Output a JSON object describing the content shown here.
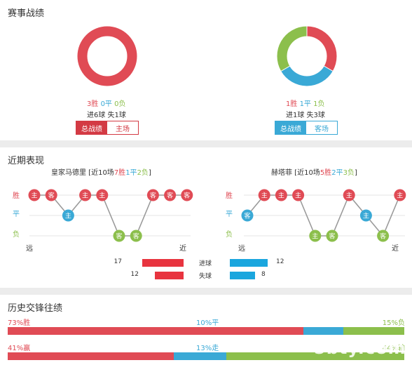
{
  "sections": {
    "record_title": "赛事战绩",
    "recent_title": "近期表现",
    "h2h_title": "历史交锋往绩"
  },
  "colors": {
    "win": "#e04b55",
    "draw": "#3aa9d6",
    "loss": "#8cbf4c",
    "scored": "#e8343f",
    "conceded": "#1aa6de"
  },
  "record": {
    "left": {
      "wins": "3胜",
      "draws": "0平",
      "losses": "0负",
      "goals": "进6球 失1球",
      "donut": {
        "win": 3,
        "draw": 0,
        "loss": 0
      },
      "tab_active": "总战绩",
      "tab_other": "主场"
    },
    "right": {
      "wins": "1胜",
      "draws": "1平",
      "losses": "1负",
      "goals": "进1球 失3球",
      "donut": {
        "win": 1,
        "draw": 1,
        "loss": 1
      },
      "tab_active": "总战绩",
      "tab_other": "客场"
    }
  },
  "recent": {
    "left": {
      "team": "皇家马德里",
      "summary_prefix": " [近10场",
      "wins": "7胜",
      "draws": "1平",
      "losses": "2负",
      "summary_suffix": "]",
      "results": [
        "W",
        "W",
        "D",
        "W",
        "W",
        "L",
        "L",
        "W",
        "W",
        "W"
      ],
      "venues": [
        "主",
        "客",
        "主",
        "主",
        "主",
        "客",
        "客",
        "客",
        "客",
        "客"
      ]
    },
    "right": {
      "team": "赫塔菲",
      "summary_prefix": " [近10场",
      "wins": "5胜",
      "draws": "2平",
      "losses": "3负",
      "summary_suffix": "]",
      "results": [
        "D",
        "W",
        "W",
        "W",
        "L",
        "L",
        "W",
        "D",
        "L",
        "W"
      ],
      "venues": [
        "客",
        "主",
        "主",
        "主",
        "主",
        "客",
        "主",
        "主",
        "客",
        "主"
      ]
    },
    "legend_win": "胜",
    "legend_draw": "平",
    "legend_loss": "负",
    "far": "远",
    "near": "近",
    "goals_label": "进球",
    "conceded_label": "失球",
    "left_goals": 17,
    "left_conceded": 12,
    "right_goals": 12,
    "right_conceded": 8
  },
  "h2h": {
    "row1": {
      "left": "73%胜",
      "mid": "10%平",
      "right": "15%负",
      "pct": [
        73,
        10,
        15
      ]
    },
    "row2": {
      "left": "41%赢",
      "mid": "13%走",
      "right": "44%输",
      "pct": [
        41,
        13,
        44
      ]
    }
  },
  "watermark": "5bty.com"
}
